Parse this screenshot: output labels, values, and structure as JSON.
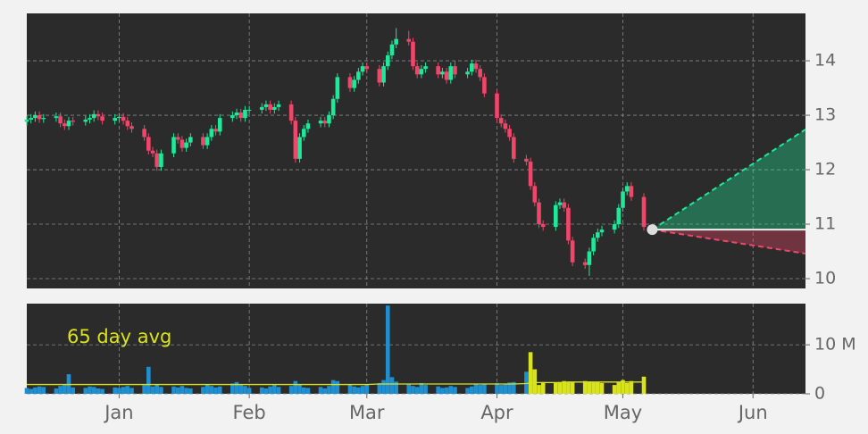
{
  "chart_data": {
    "type": "candlestick",
    "x": [
      -22,
      -21,
      -20,
      -19,
      -18,
      -15,
      -14,
      -13,
      -12,
      -11,
      -8,
      -7,
      -6,
      -5,
      -4,
      -1,
      0,
      1,
      2,
      3,
      6,
      7,
      8,
      9,
      10,
      13,
      14,
      15,
      16,
      17,
      20,
      21,
      22,
      23,
      24,
      27,
      28,
      29,
      30,
      31,
      34,
      35,
      36,
      37,
      38,
      41,
      42,
      43,
      44,
      45,
      48,
      49,
      50,
      51,
      52,
      55,
      56,
      57,
      58,
      59,
      62,
      63,
      64,
      65,
      66,
      69,
      70,
      71,
      72,
      73,
      76,
      77,
      78,
      79,
      80,
      83,
      84,
      85,
      86,
      87,
      90,
      91,
      92,
      93,
      94,
      97,
      98,
      99,
      100,
      101,
      104,
      105,
      106,
      107,
      108,
      111,
      112,
      113,
      114,
      115,
      118,
      119,
      120,
      121,
      122,
      125
    ],
    "open": [
      12.88,
      12.92,
      12.95,
      13.0,
      12.93,
      12.95,
      12.98,
      12.85,
      12.8,
      12.9,
      12.88,
      12.92,
      12.95,
      13.02,
      12.98,
      12.9,
      12.95,
      12.97,
      12.9,
      12.8,
      12.75,
      12.6,
      12.35,
      12.3,
      12.05,
      12.3,
      12.6,
      12.55,
      12.4,
      12.5,
      12.6,
      12.45,
      12.6,
      12.75,
      12.7,
      12.95,
      13.0,
      13.05,
      12.95,
      13.1,
      13.1,
      13.15,
      13.2,
      13.1,
      13.15,
      13.2,
      12.9,
      12.2,
      12.6,
      12.75,
      12.85,
      12.9,
      12.85,
      13.0,
      13.3,
      13.7,
      13.5,
      13.65,
      13.8,
      13.9,
      13.85,
      13.6,
      13.9,
      14.1,
      14.3,
      14.4,
      14.35,
      13.9,
      13.75,
      13.85,
      13.9,
      13.75,
      13.8,
      13.65,
      13.9,
      13.75,
      13.8,
      13.95,
      13.85,
      13.7,
      13.4,
      12.95,
      12.85,
      12.75,
      12.6,
      12.2,
      12.15,
      11.7,
      11.4,
      11.0,
      10.95,
      11.35,
      11.4,
      11.3,
      10.7,
      10.3,
      10.25,
      10.5,
      10.75,
      10.85,
      10.9,
      11.0,
      11.3,
      11.6,
      11.7,
      11.5
    ],
    "high": [
      12.99,
      13.02,
      13.07,
      13.07,
      13.02,
      13.05,
      13.05,
      12.92,
      12.97,
      12.97,
      12.99,
      13.02,
      13.09,
      13.09,
      13.05,
      13.02,
      13.04,
      13.04,
      12.97,
      12.87,
      12.82,
      12.67,
      12.42,
      12.37,
      12.37,
      12.67,
      12.67,
      12.62,
      12.57,
      12.67,
      12.67,
      12.67,
      12.82,
      12.82,
      13.02,
      13.07,
      13.12,
      13.12,
      13.17,
      13.17,
      13.22,
      13.27,
      13.27,
      13.22,
      13.27,
      13.27,
      12.97,
      12.67,
      12.82,
      12.92,
      12.97,
      12.97,
      13.07,
      13.37,
      13.77,
      13.77,
      13.72,
      13.87,
      13.97,
      13.97,
      13.92,
      13.97,
      14.17,
      14.37,
      14.6,
      14.55,
      14.42,
      13.97,
      13.92,
      13.97,
      13.97,
      13.87,
      13.87,
      13.97,
      14.0,
      13.87,
      14.02,
      14.02,
      13.92,
      13.77,
      13.47,
      13.02,
      12.92,
      12.82,
      12.67,
      12.27,
      12.22,
      11.77,
      11.47,
      11.07,
      11.42,
      11.47,
      11.47,
      11.37,
      10.77,
      10.37,
      10.57,
      10.82,
      10.92,
      10.97,
      11.07,
      11.37,
      11.67,
      11.77,
      11.77,
      11.57
    ],
    "low": [
      12.81,
      12.85,
      12.88,
      12.86,
      12.86,
      12.88,
      12.78,
      12.73,
      12.73,
      12.81,
      12.81,
      12.85,
      12.88,
      12.91,
      12.83,
      12.83,
      12.88,
      12.83,
      12.73,
      12.68,
      12.53,
      12.28,
      12.23,
      11.98,
      11.98,
      12.23,
      12.48,
      12.33,
      12.33,
      12.43,
      12.38,
      12.38,
      12.53,
      12.63,
      12.63,
      12.88,
      12.93,
      12.88,
      12.88,
      13.03,
      13.03,
      13.08,
      13.03,
      13.03,
      13.08,
      12.83,
      12.13,
      12.13,
      12.53,
      12.68,
      12.78,
      12.78,
      12.78,
      12.93,
      13.23,
      13.43,
      13.43,
      13.58,
      13.73,
      13.78,
      13.53,
      13.53,
      13.83,
      14.03,
      14.23,
      14.28,
      13.83,
      13.68,
      13.68,
      13.78,
      13.68,
      13.68,
      13.58,
      13.58,
      13.68,
      13.68,
      13.73,
      13.78,
      13.63,
      13.33,
      12.88,
      12.78,
      12.68,
      12.53,
      12.13,
      12.08,
      11.63,
      11.33,
      10.93,
      10.88,
      10.88,
      11.28,
      11.23,
      10.63,
      10.23,
      10.18,
      10.05,
      10.43,
      10.68,
      10.78,
      10.83,
      10.93,
      11.23,
      11.53,
      11.43,
      10.88
    ],
    "close": [
      12.92,
      12.95,
      13.0,
      12.93,
      12.95,
      12.98,
      12.85,
      12.8,
      12.9,
      12.88,
      12.92,
      12.95,
      13.02,
      12.98,
      12.9,
      12.95,
      12.97,
      12.9,
      12.8,
      12.75,
      12.6,
      12.35,
      12.3,
      12.05,
      12.3,
      12.6,
      12.55,
      12.4,
      12.5,
      12.6,
      12.45,
      12.6,
      12.75,
      12.7,
      12.95,
      13.0,
      13.05,
      12.95,
      13.1,
      13.1,
      13.15,
      13.2,
      13.1,
      13.15,
      13.2,
      12.9,
      12.2,
      12.6,
      12.75,
      12.85,
      12.9,
      12.85,
      13.0,
      13.3,
      13.7,
      13.5,
      13.65,
      13.8,
      13.9,
      13.85,
      13.6,
      13.9,
      14.1,
      14.3,
      14.4,
      14.35,
      13.9,
      13.75,
      13.85,
      13.9,
      13.75,
      13.8,
      13.65,
      13.9,
      13.75,
      13.8,
      13.95,
      13.85,
      13.7,
      13.4,
      12.95,
      12.85,
      12.75,
      12.6,
      12.2,
      12.15,
      11.7,
      11.4,
      11.0,
      10.95,
      11.35,
      11.4,
      11.3,
      10.7,
      10.3,
      10.25,
      10.5,
      10.75,
      10.85,
      10.9,
      11.0,
      11.3,
      11.6,
      11.7,
      11.5,
      10.95
    ],
    "up_color": "#1ee89a",
    "down_color": "#f0466a",
    "xlim": [
      -22,
      163.5
    ],
    "xticks": [
      {
        "value": 0,
        "label": "Jan"
      },
      {
        "value": 31,
        "label": "Feb"
      },
      {
        "value": 59,
        "label": "Mar"
      },
      {
        "value": 90,
        "label": "Apr"
      },
      {
        "value": 120,
        "label": "May"
      },
      {
        "value": 151,
        "label": "Jun"
      }
    ],
    "ylim": [
      9.82,
      14.87
    ],
    "yticks": [
      10,
      11,
      12,
      13,
      14
    ],
    "grid": true,
    "forecast": {
      "x": [
        127,
        163.5
      ],
      "base": [
        10.9,
        10.9
      ],
      "upper": [
        10.9,
        12.74
      ],
      "lower": [
        10.9,
        10.46
      ],
      "upper_color": "#1ee89a",
      "lower_color": "#f0466a"
    },
    "volume": {
      "values": [
        1.2,
        1.0,
        1.3,
        1.5,
        1.4,
        1.1,
        1.6,
        1.8,
        4.0,
        1.3,
        1.2,
        1.5,
        1.4,
        1.1,
        1.0,
        1.3,
        1.2,
        1.4,
        1.6,
        1.2,
        1.8,
        5.5,
        1.5,
        2.0,
        1.4,
        1.5,
        1.3,
        1.6,
        1.2,
        1.1,
        1.4,
        1.9,
        1.6,
        1.3,
        1.5,
        2.1,
        2.4,
        1.8,
        1.6,
        1.2,
        1.3,
        1.1,
        1.5,
        1.8,
        1.4,
        1.6,
        2.6,
        1.9,
        1.3,
        1.2,
        1.4,
        1.1,
        1.6,
        2.8,
        2.6,
        1.9,
        1.5,
        1.3,
        1.6,
        2.0,
        2.2,
        2.8,
        18.0,
        3.4,
        2.5,
        2.0,
        1.6,
        1.4,
        2.2,
        1.8,
        1.5,
        1.2,
        1.3,
        1.6,
        1.4,
        1.2,
        1.5,
        2.0,
        1.8,
        1.9,
        2.2,
        1.8,
        1.9,
        2.3,
        2.4,
        4.5,
        8.5,
        5.0,
        1.8,
        2.4,
        2.2,
        2.4,
        2.6,
        2.5,
        2.3,
        2.6,
        2.5,
        2.3,
        2.4,
        2.2,
        1.8,
        2.4,
        2.8,
        2.2,
        2.6,
        3.5
      ],
      "colors": [
        "#1f8fd0",
        "#1f8fd0",
        "#1f8fd0",
        "#1f8fd0",
        "#1f8fd0",
        "#1f8fd0",
        "#1f8fd0",
        "#1f8fd0",
        "#1f8fd0",
        "#1f8fd0",
        "#1f8fd0",
        "#1f8fd0",
        "#1f8fd0",
        "#1f8fd0",
        "#1f8fd0",
        "#1f8fd0",
        "#1f8fd0",
        "#1f8fd0",
        "#1f8fd0",
        "#1f8fd0",
        "#1f8fd0",
        "#1f8fd0",
        "#1f8fd0",
        "#1f8fd0",
        "#1f8fd0",
        "#1f8fd0",
        "#1f8fd0",
        "#1f8fd0",
        "#1f8fd0",
        "#1f8fd0",
        "#1f8fd0",
        "#1f8fd0",
        "#1f8fd0",
        "#1f8fd0",
        "#1f8fd0",
        "#1f8fd0",
        "#1f8fd0",
        "#1f8fd0",
        "#1f8fd0",
        "#1f8fd0",
        "#1f8fd0",
        "#1f8fd0",
        "#1f8fd0",
        "#1f8fd0",
        "#1f8fd0",
        "#1f8fd0",
        "#1f8fd0",
        "#1f8fd0",
        "#1f8fd0",
        "#1f8fd0",
        "#1f8fd0",
        "#1f8fd0",
        "#1f8fd0",
        "#1f8fd0",
        "#1f8fd0",
        "#1f8fd0",
        "#1f8fd0",
        "#1f8fd0",
        "#1f8fd0",
        "#1f8fd0",
        "#1f8fd0",
        "#1f8fd0",
        "#1f8fd0",
        "#1f8fd0",
        "#1f8fd0",
        "#1f8fd0",
        "#1f8fd0",
        "#1f8fd0",
        "#1f8fd0",
        "#1f8fd0",
        "#1f8fd0",
        "#1f8fd0",
        "#1f8fd0",
        "#1f8fd0",
        "#1f8fd0",
        "#1f8fd0",
        "#1f8fd0",
        "#1f8fd0",
        "#1f8fd0",
        "#1f8fd0",
        "#1f8fd0",
        "#1f8fd0",
        "#1f8fd0",
        "#1f8fd0",
        "#1f8fd0",
        "#1f8fd0",
        "#d9e31c",
        "#d9e31c",
        "#d9e31c",
        "#d9e31c",
        "#d9e31c",
        "#d9e31c",
        "#d9e31c",
        "#d9e31c",
        "#d9e31c",
        "#d9e31c",
        "#d9e31c",
        "#d9e31c",
        "#d9e31c",
        "#d9e31c",
        "#d9e31c",
        "#d9e31c",
        "#d9e31c",
        "#d9e31c",
        "#d9e31c",
        "#d9e31c"
      ],
      "ylim": [
        0,
        18.4
      ],
      "yticks": [
        0,
        {
          "value": 10,
          "label": "10 M"
        }
      ],
      "average": {
        "label": "65 day avg",
        "color": "#d9e31c",
        "values": [
          1.9,
          1.9,
          1.9,
          1.9,
          1.9,
          1.9,
          1.9,
          1.9,
          1.9,
          1.9,
          1.9,
          1.9,
          1.9,
          1.9,
          1.9,
          1.9,
          1.9,
          1.9,
          1.9,
          1.9,
          1.9,
          1.9,
          1.9,
          1.9,
          1.9,
          1.9,
          1.9,
          1.9,
          1.9,
          1.9,
          1.9,
          1.9,
          1.9,
          1.9,
          1.9,
          1.9,
          1.9,
          1.9,
          1.9,
          1.9,
          1.9,
          1.9,
          1.9,
          1.9,
          1.9,
          1.9,
          1.9,
          1.9,
          1.9,
          1.9,
          1.9,
          1.9,
          1.9,
          1.9,
          1.9,
          1.9,
          1.9,
          1.9,
          1.9,
          1.9,
          2.0,
          2.0,
          2.0,
          2.0,
          2.0,
          2.0,
          2.0,
          2.0,
          2.0,
          2.0,
          2.0,
          2.0,
          2.0,
          2.0,
          2.0,
          2.0,
          2.0,
          2.0,
          2.0,
          2.0,
          2.0,
          2.0,
          2.0,
          2.0,
          2.0,
          2.1,
          2.2,
          2.3,
          2.3,
          2.3,
          2.3,
          2.3,
          2.3,
          2.4,
          2.4,
          2.4,
          2.4,
          2.4,
          2.4,
          2.4,
          2.4,
          2.4,
          2.4,
          2.4,
          2.4,
          2.4
        ]
      }
    }
  }
}
